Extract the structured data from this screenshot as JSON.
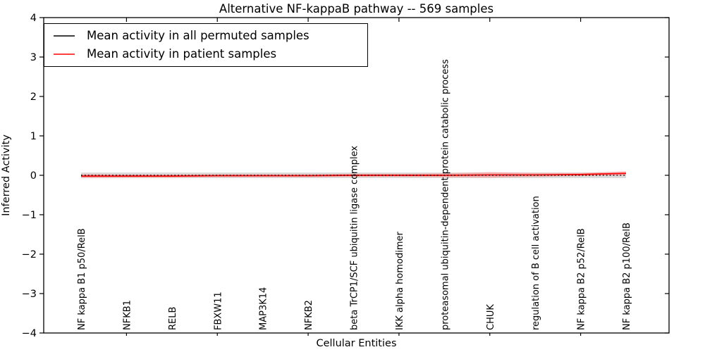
{
  "chart_data": {
    "type": "line",
    "title": "Alternative NF-kappaB pathway -- 569 samples",
    "xlabel": "Cellular Entities",
    "ylabel": "Inferred Activity",
    "ylim": [
      -4,
      4
    ],
    "yticks": [
      -4,
      -3,
      -2,
      -1,
      0,
      1,
      2,
      3,
      4
    ],
    "grid": false,
    "legend_position": "upper left",
    "categories": [
      "NF kappa B1 p50/RelB",
      "NFKB1",
      "RELB",
      "FBXW11",
      "MAP3K14",
      "NFKB2",
      "beta TrCP1/SCF ubiquitin ligase complex",
      "IKK alpha homodimer",
      "proteasomal ubiquitin-dependent protein catabolic process",
      "CHUK",
      "regulation of B cell activation",
      "NF kappa B2 p52/RelB",
      "NF kappa B2 p100/RelB"
    ],
    "series": [
      {
        "name": "Mean activity in all permuted samples",
        "color": "#000000",
        "style": "dotted",
        "values": [
          0,
          0,
          0,
          0,
          0,
          0,
          0,
          0,
          0,
          0,
          0,
          0,
          0
        ],
        "band_halfwidth": [
          0.07,
          0.07,
          0.07,
          0.07,
          0.07,
          0.07,
          0.07,
          0.07,
          0.07,
          0.07,
          0.07,
          0.07,
          0.07
        ],
        "band_color": "#bbbbbb"
      },
      {
        "name": "Mean activity in patient samples",
        "color": "#ff0000",
        "style": "solid",
        "values": [
          -0.02,
          -0.02,
          -0.02,
          -0.01,
          -0.01,
          -0.01,
          0,
          0,
          0,
          0.01,
          0.01,
          0.02,
          0.05
        ],
        "band_halfwidth": [
          0.05,
          0.04,
          0.04,
          0.04,
          0.04,
          0.04,
          0.04,
          0.04,
          0.05,
          0.07,
          0.05,
          0.04,
          0.05
        ],
        "band_color": "#ff8888"
      }
    ]
  },
  "legend": {
    "entries": [
      {
        "label": "Mean activity in all permuted samples",
        "color": "#000000"
      },
      {
        "label": "Mean activity in patient samples",
        "color": "#ff0000"
      }
    ]
  }
}
